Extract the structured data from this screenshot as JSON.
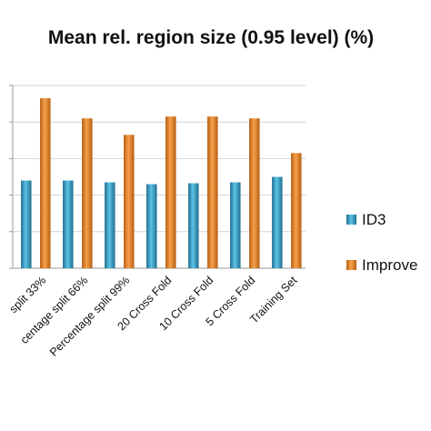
{
  "chart_data": {
    "type": "bar",
    "title": "Mean rel. region size (0.95 level) (%)",
    "xlabel": "",
    "ylabel": "",
    "categories": [
      "split 33%",
      "centage split 66%",
      "Percentage split 99%",
      "20 Cross Fold",
      "10 Cross Fold",
      "5 Cross Fold",
      "Training Set"
    ],
    "series": [
      {
        "name": "ID3",
        "values": [
          48,
          48,
          47,
          46,
          46.5,
          47,
          50
        ],
        "color": "#3a9fc6"
      },
      {
        "name": "Improve",
        "values": [
          93,
          82,
          73,
          83,
          83,
          82,
          63
        ],
        "color": "#f08a2c"
      }
    ],
    "ylim": [
      0,
      100
    ],
    "grid": true,
    "legend": "right"
  }
}
